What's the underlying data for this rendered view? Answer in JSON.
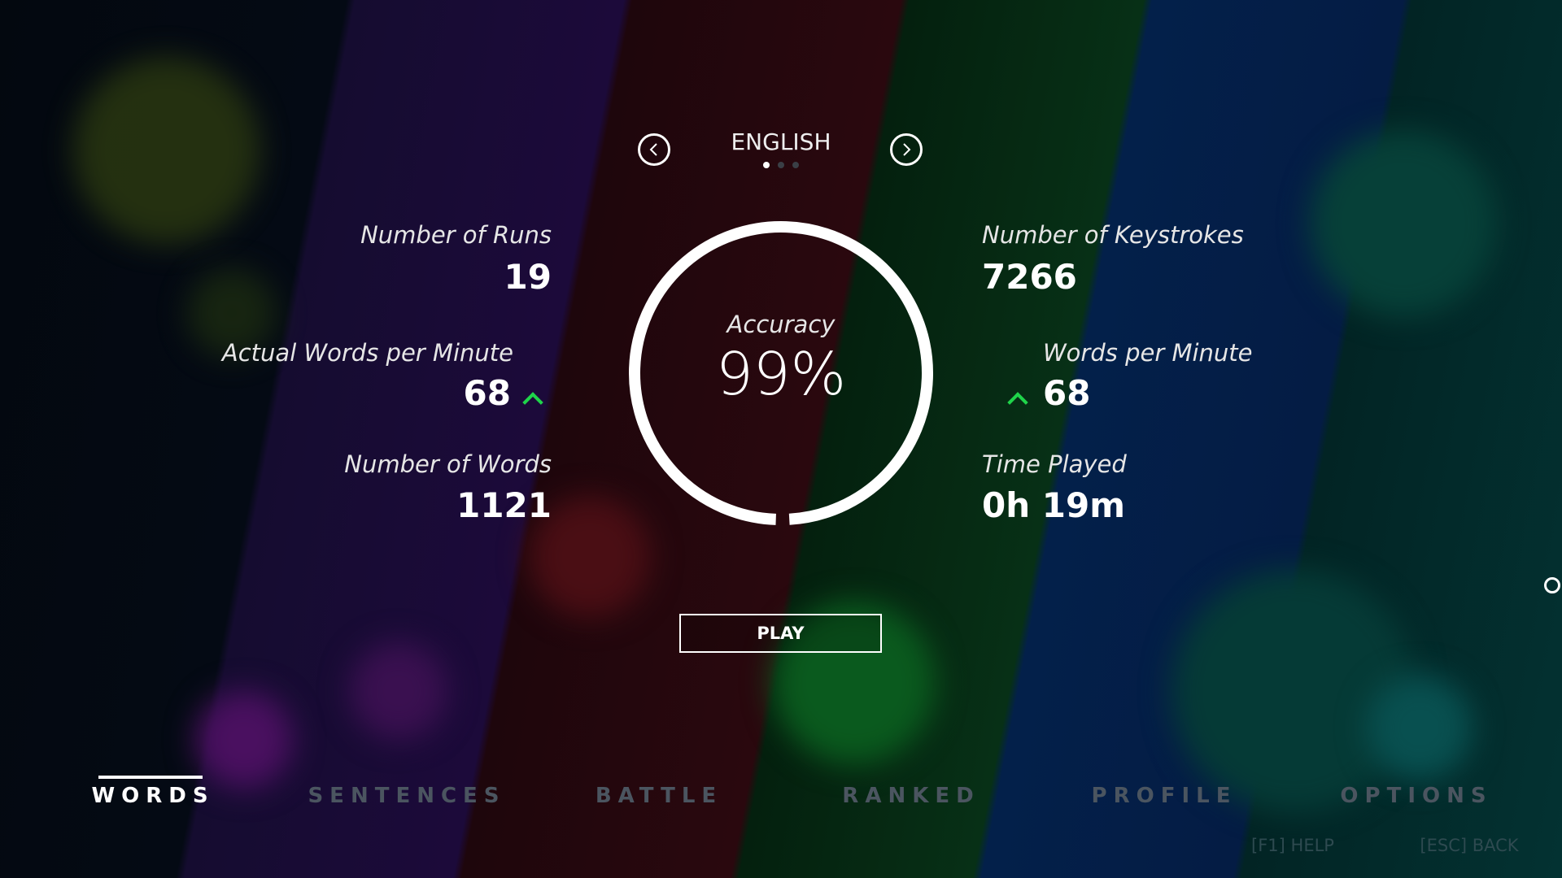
{
  "language": {
    "title": "ENGLISH",
    "pages": 3,
    "current_page": 1
  },
  "accuracy": {
    "label": "Accuracy",
    "value": "99%",
    "fraction": 0.99
  },
  "left_stats": [
    {
      "label": "Number of Runs",
      "value": "19"
    },
    {
      "label": "Actual Words per Minute",
      "value": "68",
      "trend": "up"
    },
    {
      "label": "Number of Words",
      "value": "1121"
    }
  ],
  "right_stats": [
    {
      "label": "Number of Keystrokes",
      "value": "7266"
    },
    {
      "label": "Words per Minute",
      "value": "68",
      "trend": "up"
    },
    {
      "label": "Time Played",
      "value": "0h 19m"
    }
  ],
  "play_label": "PLAY",
  "tabs": [
    {
      "label": "WORDS",
      "active": true
    },
    {
      "label": "SENTENCES"
    },
    {
      "label": "BATTLE"
    },
    {
      "label": "RANKED"
    },
    {
      "label": "PROFILE"
    },
    {
      "label": "OPTIONS"
    }
  ],
  "hints": {
    "help": "[F1] HELP",
    "back": "[ESC] BACK"
  },
  "colors": {
    "trend_up": "#1fd44a",
    "inactive_tab": "#4b5560"
  }
}
